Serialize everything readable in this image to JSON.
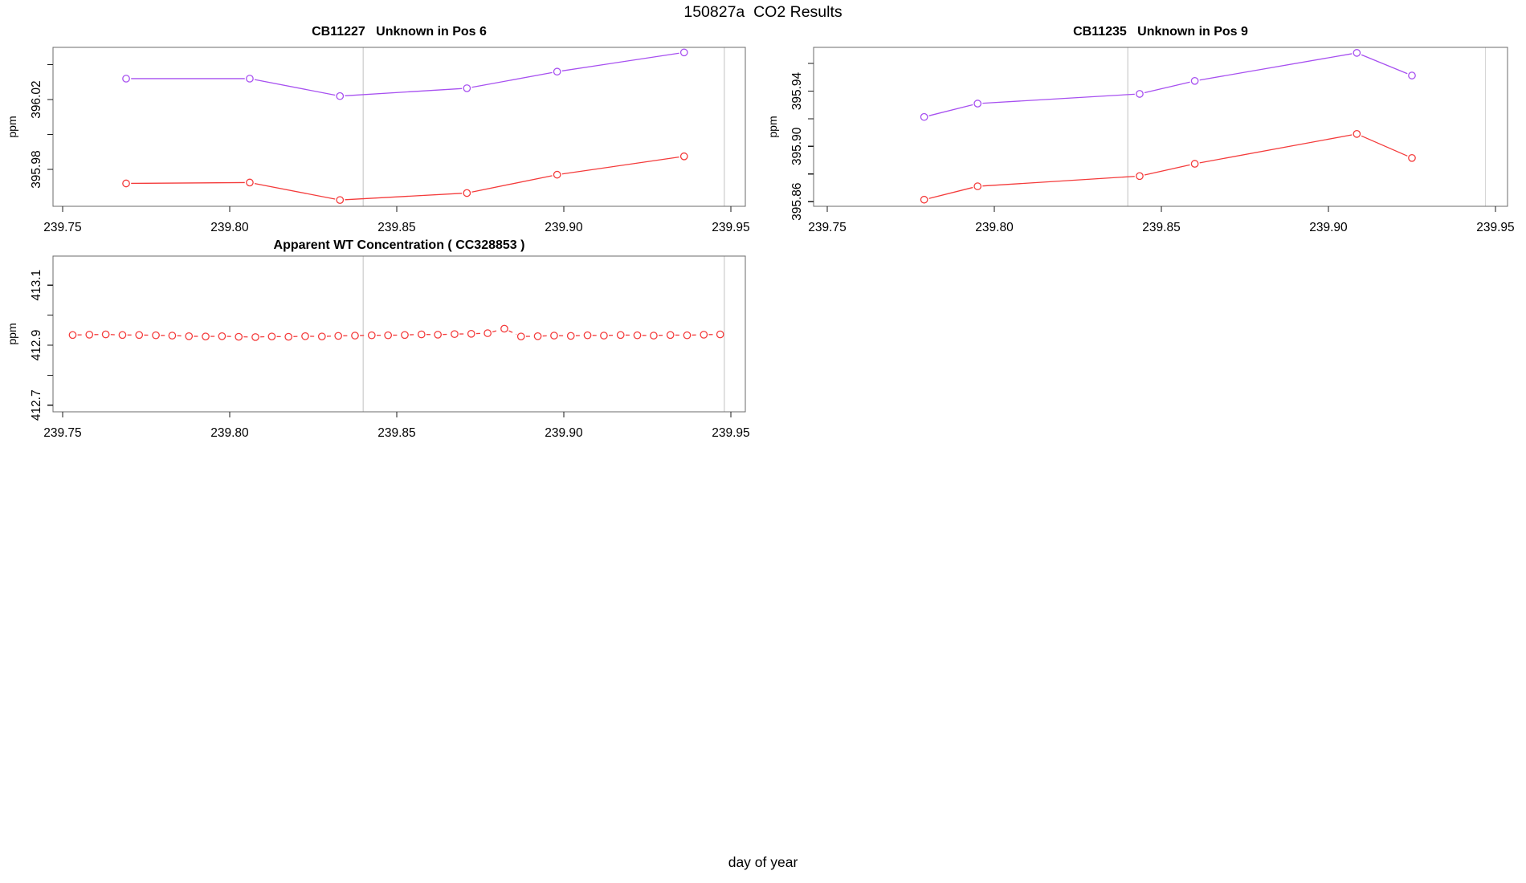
{
  "page": {
    "title": "150827a  CO2 Results",
    "xlabel": "day of year"
  },
  "colors": {
    "purple": "#a750f0",
    "red": "#f43b3b",
    "vline": "#d6d6d6",
    "panel_border": "#6b6b6b",
    "tick": "#1a1a1a"
  },
  "chart_data": [
    {
      "id": "cb11227-pos6",
      "type": "line",
      "title": "CB11227   Unknown in Pos 6",
      "ylabel": "ppm",
      "xlim": [
        239.74712,
        239.95433
      ],
      "ylim": [
        395.9589,
        396.0499
      ],
      "xticks": [
        239.75,
        239.8,
        239.85,
        239.9,
        239.95
      ],
      "xtick_labels": [
        "239.75",
        "239.80",
        "239.85",
        "239.90",
        "239.95"
      ],
      "yticks": [
        395.98,
        396.0,
        396.02,
        396.04
      ],
      "ytick_labels": [
        "395.98",
        "",
        "396.02",
        ""
      ],
      "vlines": [
        239.84,
        239.948
      ],
      "grid": "off",
      "legend": "none",
      "series": [
        {
          "name": "purple",
          "color_key": "purple",
          "dash": false,
          "marker": "circle",
          "points": [
            [
              239.769,
              396.032
            ],
            [
              239.806,
              396.032
            ],
            [
              239.833,
              396.022
            ],
            [
              239.871,
              396.0265
            ],
            [
              239.898,
              396.036
            ],
            [
              239.936,
              396.047
            ]
          ]
        },
        {
          "name": "red",
          "color_key": "red",
          "dash": false,
          "marker": "circle",
          "points": [
            [
              239.769,
              395.972
            ],
            [
              239.806,
              395.9725
            ],
            [
              239.833,
              395.9625
            ],
            [
              239.871,
              395.9665
            ],
            [
              239.898,
              395.977
            ],
            [
              239.936,
              395.9875
            ]
          ]
        }
      ]
    },
    {
      "id": "cb11235-pos9",
      "type": "line",
      "title": "CB11235   Unknown in Pos 9",
      "ylabel": "ppm",
      "xlim": [
        239.74591,
        239.95361
      ],
      "ylim": [
        395.8566,
        395.9717
      ],
      "xticks": [
        239.75,
        239.8,
        239.85,
        239.9,
        239.95
      ],
      "xtick_labels": [
        "239.75",
        "239.80",
        "239.85",
        "239.90",
        "239.95"
      ],
      "yticks": [
        395.86,
        395.88,
        395.9,
        395.92,
        395.94,
        395.96
      ],
      "ytick_labels": [
        "395.86",
        "",
        "395.90",
        "",
        "395.94",
        ""
      ],
      "vlines": [
        239.84,
        239.947
      ],
      "grid": "off",
      "legend": "none",
      "series": [
        {
          "name": "purple",
          "color_key": "purple",
          "dash": false,
          "marker": "circle",
          "points": [
            [
              239.779,
              395.9213
            ],
            [
              239.795,
              395.931
            ],
            [
              239.8435,
              395.938
            ],
            [
              239.86,
              395.9474
            ],
            [
              239.9085,
              395.9677
            ],
            [
              239.925,
              395.9513
            ]
          ]
        },
        {
          "name": "red",
          "color_key": "red",
          "dash": false,
          "marker": "circle",
          "points": [
            [
              239.779,
              395.8614
            ],
            [
              239.795,
              395.8711
            ],
            [
              239.8435,
              395.8785
            ],
            [
              239.86,
              395.8874
            ],
            [
              239.9085,
              395.909
            ],
            [
              239.925,
              395.8916
            ]
          ]
        }
      ]
    },
    {
      "id": "apparent-wt-concentration",
      "type": "line",
      "title": "Apparent WT Concentration ( CC328853 )",
      "ylabel": "ppm",
      "xlim": [
        239.74712,
        239.95433
      ],
      "ylim": [
        412.678,
        413.197
      ],
      "xticks": [
        239.75,
        239.8,
        239.85,
        239.9,
        239.95
      ],
      "xtick_labels": [
        "239.75",
        "239.80",
        "239.85",
        "239.90",
        "239.95"
      ],
      "yticks": [
        412.7,
        412.8,
        412.9,
        413.0,
        413.1
      ],
      "ytick_labels": [
        "412.7",
        "",
        "412.9",
        "",
        "413.1"
      ],
      "vlines": [
        239.84,
        239.948
      ],
      "grid": "off",
      "legend": "none",
      "series": [
        {
          "name": "red",
          "color_key": "red",
          "dash": true,
          "marker": "circle",
          "points": [
            [
              239.753,
              412.934
            ],
            [
              239.758,
              412.935
            ],
            [
              239.7629,
              412.936
            ],
            [
              239.7679,
              412.934
            ],
            [
              239.7729,
              412.934
            ],
            [
              239.7779,
              412.933
            ],
            [
              239.7828,
              412.932
            ],
            [
              239.7878,
              412.93
            ],
            [
              239.7928,
              412.929
            ],
            [
              239.7977,
              412.93
            ],
            [
              239.8027,
              412.928
            ],
            [
              239.8077,
              412.927
            ],
            [
              239.8126,
              412.929
            ],
            [
              239.8176,
              412.928
            ],
            [
              239.8226,
              412.93
            ],
            [
              239.8276,
              412.929
            ],
            [
              239.8325,
              412.931
            ],
            [
              239.8375,
              412.932
            ],
            [
              239.8425,
              412.933
            ],
            [
              239.8474,
              412.933
            ],
            [
              239.8524,
              412.934
            ],
            [
              239.8574,
              412.936
            ],
            [
              239.8623,
              412.935
            ],
            [
              239.8673,
              412.937
            ],
            [
              239.8723,
              412.938
            ],
            [
              239.8772,
              412.94
            ],
            [
              239.8822,
              412.955
            ],
            [
              239.8872,
              412.929
            ],
            [
              239.8922,
              412.93
            ],
            [
              239.8971,
              412.932
            ],
            [
              239.9021,
              412.931
            ],
            [
              239.9071,
              412.933
            ],
            [
              239.912,
              412.932
            ],
            [
              239.917,
              412.934
            ],
            [
              239.922,
              412.933
            ],
            [
              239.9269,
              412.932
            ],
            [
              239.9319,
              412.934
            ],
            [
              239.9369,
              412.933
            ],
            [
              239.9419,
              412.935
            ],
            [
              239.9468,
              412.936
            ]
          ]
        }
      ]
    }
  ]
}
